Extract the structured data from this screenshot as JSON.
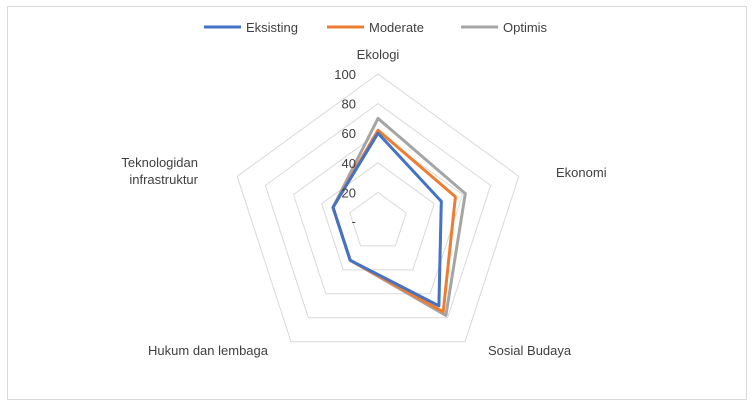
{
  "chart_data": {
    "type": "radar",
    "categories": [
      "Ekologi",
      "Ekonomi",
      "Sosial Budaya",
      "Hukum dan lembaga",
      "Teknologidan infrastruktur"
    ],
    "category_lines": [
      [
        "Ekologi"
      ],
      [
        "Ekonomi"
      ],
      [
        "Sosial Budaya"
      ],
      [
        "Hukum dan lembaga"
      ],
      [
        "Teknologidan",
        "infrastruktur"
      ]
    ],
    "series": [
      {
        "name": "Eksisting",
        "color": "#4472c4",
        "values": [
          60,
          45,
          70,
          32,
          32
        ]
      },
      {
        "name": "Moderate",
        "color": "#ed7d31",
        "values": [
          62,
          55,
          75,
          32,
          32
        ]
      },
      {
        "name": "Optimis",
        "color": "#a5a5a5",
        "values": [
          70,
          62,
          78,
          32,
          32
        ]
      }
    ],
    "ticks": [
      "-",
      "20",
      "40",
      "60",
      "80",
      "100"
    ],
    "rmax": 100,
    "grid": true,
    "legend_position": "top"
  }
}
